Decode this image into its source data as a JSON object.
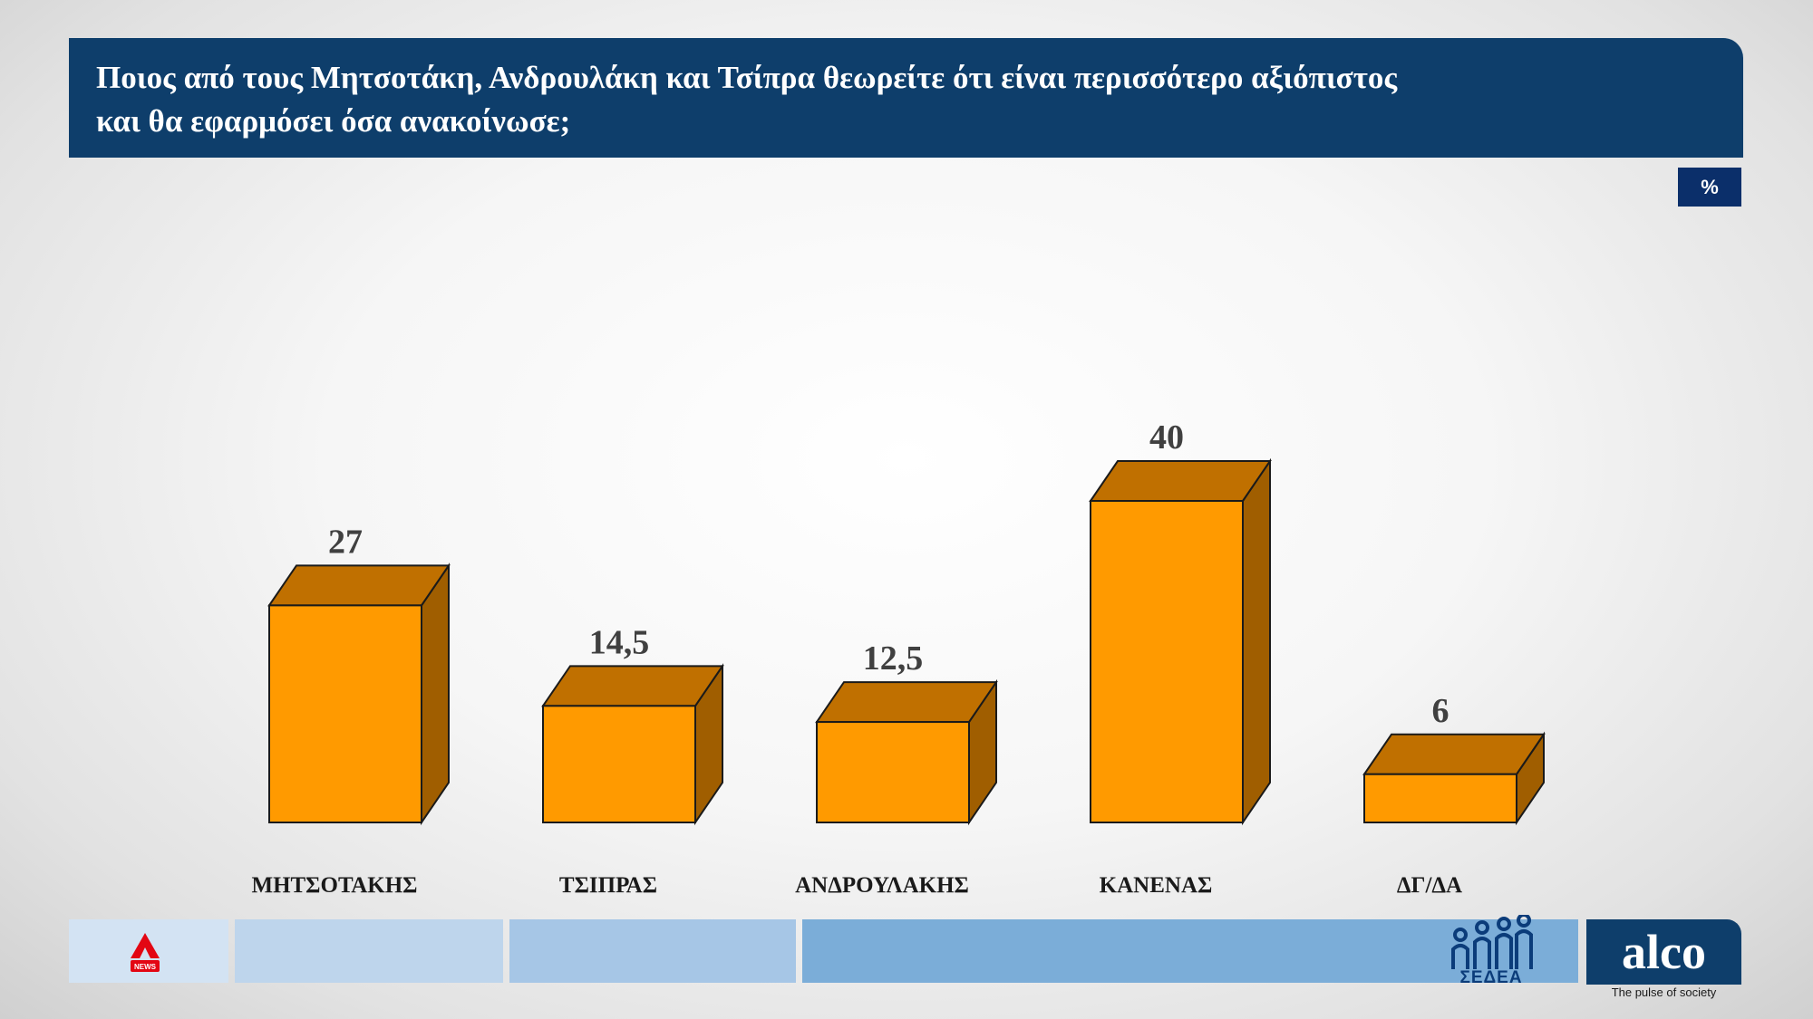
{
  "title": {
    "line1": "Ποιος από τους Μητσοτάκη, Ανδρουλάκη και Τσίπρα θεωρείτε ότι είναι περισσότερο αξιόπιστος",
    "line2": "και θα εφαρμόσει όσα ανακοίνωσε;"
  },
  "unit_badge": "%",
  "colors": {
    "header": "#0e3e6b",
    "bar_front": "#ff9a00",
    "bar_top": "#c07000",
    "bar_side": "#a05e00"
  },
  "chart_data": {
    "type": "bar",
    "categories": [
      "ΜΗΤΣΟΤΑΚΗΣ",
      "ΤΣΙΠΡΑΣ",
      "ΑΝΔΡΟΥΛΑΚΗΣ",
      "ΚΑΝΕΝΑΣ",
      "ΔΓ/ΔΑ"
    ],
    "values": [
      27,
      14.5,
      12.5,
      40,
      6
    ],
    "value_labels": [
      "27",
      "14,5",
      "12,5",
      "40",
      "6"
    ],
    "ylim": [
      0,
      40
    ],
    "grid": false,
    "legend": "none"
  },
  "footer": {
    "left_logo": "alpha-news-logo",
    "center_logo": "sedea-logo",
    "center_logo_text": "ΣΕΔΕΑ",
    "brand": "alco",
    "brand_tagline": "The pulse of society"
  }
}
